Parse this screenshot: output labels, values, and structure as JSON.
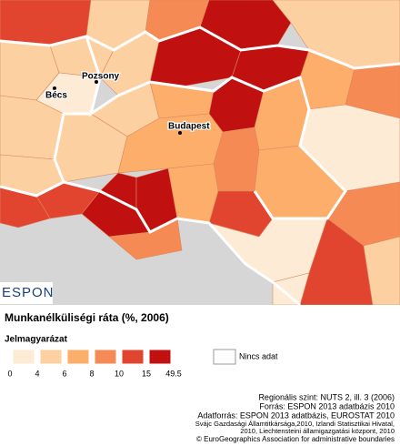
{
  "map": {
    "title": "Munkanélküliségi ráta (%, 2006)",
    "cities": [
      "Bécs",
      "Pozsony",
      "Budapest"
    ],
    "logo": "ESPON"
  },
  "legend": {
    "title": "Jelmagyarázat",
    "colors": [
      "#fdebd6",
      "#fdd0a2",
      "#fdae6b",
      "#f58a55",
      "#e2452f",
      "#c0100f"
    ],
    "breaks": [
      0,
      4,
      6,
      8,
      10,
      15,
      49.5
    ],
    "no_data": "Nincs adat"
  },
  "sources": [
    "Regionális szint: NUTS 2, ill. 3 (2006)",
    "Forrás: ESPON 2013 adatbázis 2010",
    "Adatforrás: ESPON 2013 adatbázis, EUROSTAT 2010",
    "Svájc Gazdasági Államtitkársága,2010, Izlandi Statisztikai Hivatal,",
    "2010, Liechtensteini államigazgatási központ, 2010",
    "© EuroGeographics Association for administrative boundaries"
  ]
}
